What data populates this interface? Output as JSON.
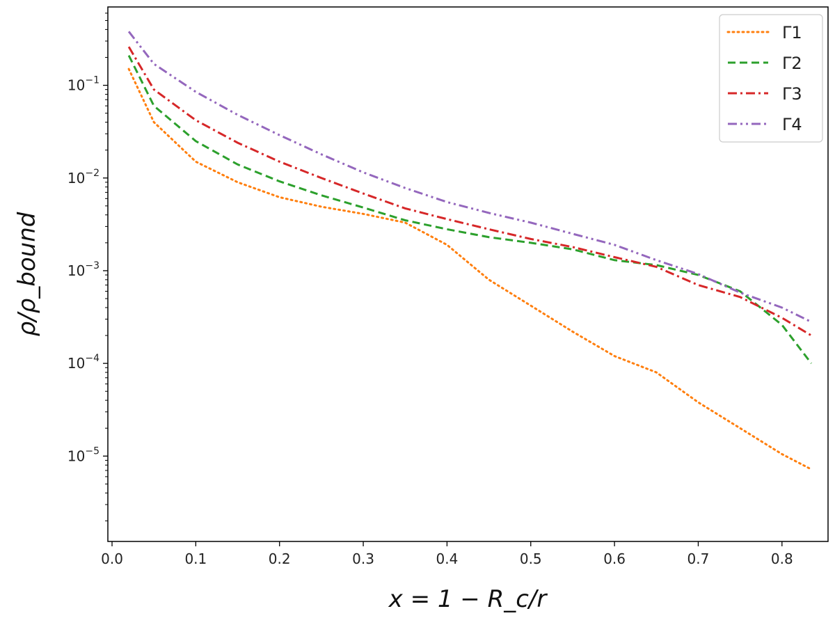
{
  "chart_data": {
    "type": "line",
    "xlabel": "x = 1 − R_c/r",
    "ylabel": "ρ/ρ_bound",
    "xlim": [
      -0.005,
      0.855
    ],
    "ylim": [
      1.2e-06,
      0.7
    ],
    "yscale": "log",
    "grid": false,
    "legend_position": "top-right",
    "x_ticks": [
      "0.0",
      "0.1",
      "0.2",
      "0.3",
      "0.4",
      "0.5",
      "0.6",
      "0.7",
      "0.8"
    ],
    "y_ticks": [
      {
        "base": "10",
        "exp": "−1"
      },
      {
        "base": "10",
        "exp": "−2"
      },
      {
        "base": "10",
        "exp": "−3"
      },
      {
        "base": "10",
        "exp": "−4"
      },
      {
        "base": "10",
        "exp": "−5"
      }
    ],
    "x": [
      0.02,
      0.05,
      0.1,
      0.15,
      0.2,
      0.25,
      0.3,
      0.35,
      0.4,
      0.45,
      0.5,
      0.55,
      0.6,
      0.65,
      0.7,
      0.75,
      0.8,
      0.835
    ],
    "series": [
      {
        "name": "Γ1",
        "color": "#ff7f0e",
        "dash": "dotted",
        "values": [
          0.15,
          0.04,
          0.015,
          0.009,
          0.0062,
          0.0049,
          0.0041,
          0.0033,
          0.0019,
          0.0008,
          0.00042,
          0.00022,
          0.00012,
          8e-05,
          3.8e-05,
          2e-05,
          1.05e-05,
          7.2e-06
        ]
      },
      {
        "name": "Γ2",
        "color": "#2ca02c",
        "dash": "dashed",
        "values": [
          0.21,
          0.06,
          0.025,
          0.014,
          0.0092,
          0.0065,
          0.0048,
          0.0035,
          0.0028,
          0.0023,
          0.002,
          0.0017,
          0.0013,
          0.00115,
          0.0009,
          0.0006,
          0.00026,
          0.0001
        ]
      },
      {
        "name": "Γ3",
        "color": "#d62728",
        "dash": "dashdot",
        "values": [
          0.26,
          0.09,
          0.042,
          0.024,
          0.015,
          0.01,
          0.0068,
          0.0047,
          0.0036,
          0.0028,
          0.0022,
          0.0018,
          0.0014,
          0.0011,
          0.0007,
          0.00052,
          0.00031,
          0.0002
        ]
      },
      {
        "name": "Γ4",
        "color": "#9467bd",
        "dash": "dashdotdot",
        "values": [
          0.38,
          0.17,
          0.085,
          0.048,
          0.029,
          0.018,
          0.0115,
          0.0078,
          0.0055,
          0.0042,
          0.0033,
          0.0025,
          0.0019,
          0.0013,
          0.00092,
          0.00058,
          0.0004,
          0.00028
        ]
      }
    ]
  }
}
